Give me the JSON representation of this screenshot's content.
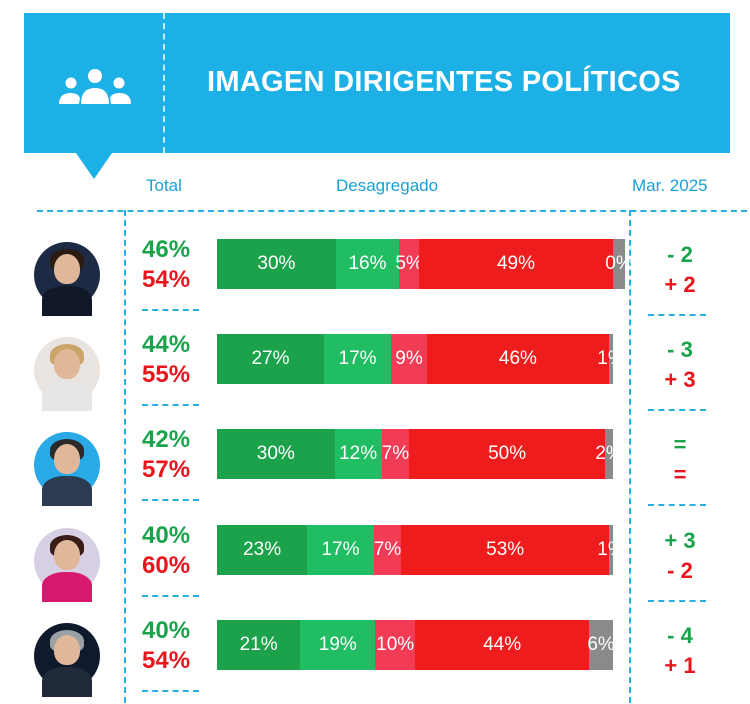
{
  "header": {
    "title": "IMAGEN DIRIGENTES POLÍTICOS",
    "icon": "people-group-icon"
  },
  "columns": {
    "total": "Total",
    "breakdown": "Desagregado",
    "comparison": "Mar. 2025"
  },
  "colors": {
    "very_positive": "#1ca24b",
    "positive": "#20bd63",
    "negative": "#f23b55",
    "very_negative": "#ee1c1c",
    "unknown": "#8a8a8a",
    "header": "#1db0e6"
  },
  "chart_data": {
    "type": "bar",
    "orientation": "horizontal",
    "stacked": true,
    "x_axis": "percent",
    "series": [
      {
        "key": "very_positive"
      },
      {
        "key": "positive"
      },
      {
        "key": "negative"
      },
      {
        "key": "very_negative"
      },
      {
        "key": "unknown"
      }
    ],
    "rows": [
      {
        "positive_total": "46%",
        "negative_total": "54%",
        "segments": [
          30,
          16,
          5,
          49,
          0
        ],
        "labels": [
          "30%",
          "16%",
          "5%",
          "49%",
          "0%"
        ],
        "change_positive": "- 2",
        "change_negative": "+ 2"
      },
      {
        "positive_total": "44%",
        "negative_total": "55%",
        "segments": [
          27,
          17,
          9,
          46,
          1
        ],
        "labels": [
          "27%",
          "17%",
          "9%",
          "46%",
          "1%"
        ],
        "change_positive": "- 3",
        "change_negative": "+ 3"
      },
      {
        "positive_total": "42%",
        "negative_total": "57%",
        "segments": [
          30,
          12,
          7,
          50,
          2
        ],
        "labels": [
          "30%",
          "12%",
          "7%",
          "50%",
          "2%"
        ],
        "change_positive": "=",
        "change_negative": "="
      },
      {
        "positive_total": "40%",
        "negative_total": "60%",
        "segments": [
          23,
          17,
          7,
          53,
          1
        ],
        "labels": [
          "23%",
          "17%",
          "7%",
          "53%",
          "1%"
        ],
        "change_positive": "+ 3",
        "change_negative": "- 2"
      },
      {
        "positive_total": "40%",
        "negative_total": "54%",
        "segments": [
          21,
          19,
          10,
          44,
          6
        ],
        "labels": [
          "21%",
          "19%",
          "10%",
          "44%",
          "6%"
        ],
        "change_positive": "- 4",
        "change_negative": "+ 1"
      }
    ]
  }
}
